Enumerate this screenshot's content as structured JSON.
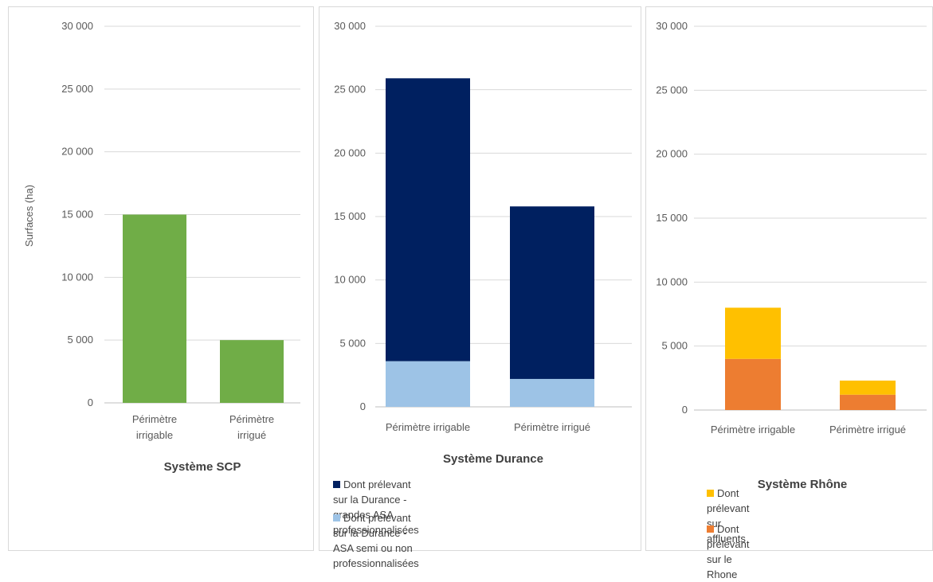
{
  "chart_data": [
    {
      "type": "bar",
      "title": "Système SCP",
      "ylabel": "Surfaces (ha)",
      "ylim": [
        0,
        30000
      ],
      "yticks": [
        "30 000",
        "25 000",
        "20 000",
        "15 000",
        "10 000",
        "5 000",
        "0"
      ],
      "categories": [
        [
          "Périmètre",
          "irrigable"
        ],
        [
          "Périmètre",
          "irrigué"
        ]
      ],
      "series": [
        {
          "values": [
            15000,
            5000
          ],
          "color": "#70ad47"
        }
      ],
      "grid": true
    },
    {
      "type": "bar",
      "stacked": true,
      "title": "Système Durance",
      "ylim": [
        0,
        30000
      ],
      "yticks": [
        "30 000",
        "25 000",
        "20 000",
        "15 000",
        "10 000",
        "5 000",
        "0"
      ],
      "categories": [
        "Périmètre irrigable",
        "Périmètre irrigué"
      ],
      "series": [
        {
          "name": "Dont prélevant sur la Durance - ASA semi ou non professionnalisées",
          "values": [
            3600,
            2200
          ],
          "color": "#9dc3e6"
        },
        {
          "name": "Dont prélevant sur la Durance - grandes ASA professionnalisées",
          "values": [
            22300,
            13600
          ],
          "color": "#002060"
        }
      ],
      "legend": [
        {
          "lines": [
            "Dont prélevant sur la Durance - grandes ASA",
            "professionnalisées"
          ],
          "color": "#002060"
        },
        {
          "lines": [
            "Dont prélevant sur la Durance - ASA semi ou non",
            "professionnalisées"
          ],
          "color": "#9dc3e6"
        }
      ],
      "legend_position": "bottom",
      "grid": true
    },
    {
      "type": "bar",
      "stacked": true,
      "title": "Système Rhône",
      "ylim": [
        0,
        30000
      ],
      "yticks": [
        "30 000",
        "25 000",
        "20 000",
        "15 000",
        "10 000",
        "5 000",
        "0"
      ],
      "categories": [
        "Périmètre irrigable",
        "Périmètre irrigué"
      ],
      "series": [
        {
          "name": "Dont prélevant sur le Rhone",
          "values": [
            4000,
            1200
          ],
          "color": "#ed7d31"
        },
        {
          "name": "Dont prélevant sur affluents",
          "values": [
            4000,
            1100
          ],
          "color": "#ffc000"
        }
      ],
      "legend": [
        {
          "lines": [
            "Dont prélevant sur affluents"
          ],
          "color": "#ffc000"
        },
        {
          "lines": [
            "Dont prélevant sur le Rhone"
          ],
          "color": "#ed7d31"
        }
      ],
      "legend_position": "bottom",
      "grid": true
    }
  ]
}
